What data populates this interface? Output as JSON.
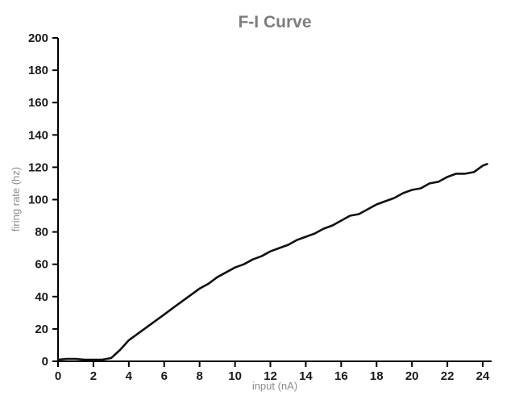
{
  "chart_data": {
    "type": "line",
    "title": "F-I Curve",
    "xlabel": "input (nA)",
    "ylabel": "firing rate (hz)",
    "xlim": [
      0,
      24.5
    ],
    "ylim": [
      0,
      200
    ],
    "xticks": [
      0,
      2,
      4,
      6,
      8,
      10,
      12,
      14,
      16,
      18,
      20,
      22,
      24
    ],
    "yticks": [
      0,
      20,
      40,
      60,
      80,
      100,
      120,
      140,
      160,
      180,
      200
    ],
    "grid": false,
    "legend": "none",
    "line_color": "#111111",
    "line_width": 2.6,
    "axis_color": "#000000",
    "series": [
      {
        "name": "firing rate",
        "x": [
          0,
          0.5,
          1,
          1.5,
          2,
          2.5,
          3,
          3.5,
          4,
          4.5,
          5,
          5.5,
          6,
          6.5,
          7,
          7.5,
          8,
          8.5,
          9,
          9.5,
          10,
          10.5,
          11,
          11.5,
          12,
          12.5,
          13,
          13.5,
          14,
          14.5,
          15,
          15.5,
          16,
          16.5,
          17,
          17.5,
          18,
          18.5,
          19,
          19.5,
          20,
          20.5,
          21,
          21.5,
          22,
          22.5,
          23,
          23.5,
          24,
          24.25
        ],
        "y": [
          1,
          1.5,
          1.5,
          1,
          1,
          1,
          2,
          7,
          13,
          17,
          21,
          25,
          29,
          33,
          37,
          41,
          45,
          48,
          52,
          55,
          58,
          60,
          63,
          65,
          68,
          70,
          72,
          75,
          77,
          79,
          82,
          84,
          87,
          90,
          91,
          94,
          97,
          99,
          101,
          104,
          106,
          107,
          110,
          111,
          114,
          116,
          116,
          117,
          121,
          122
        ]
      }
    ]
  }
}
